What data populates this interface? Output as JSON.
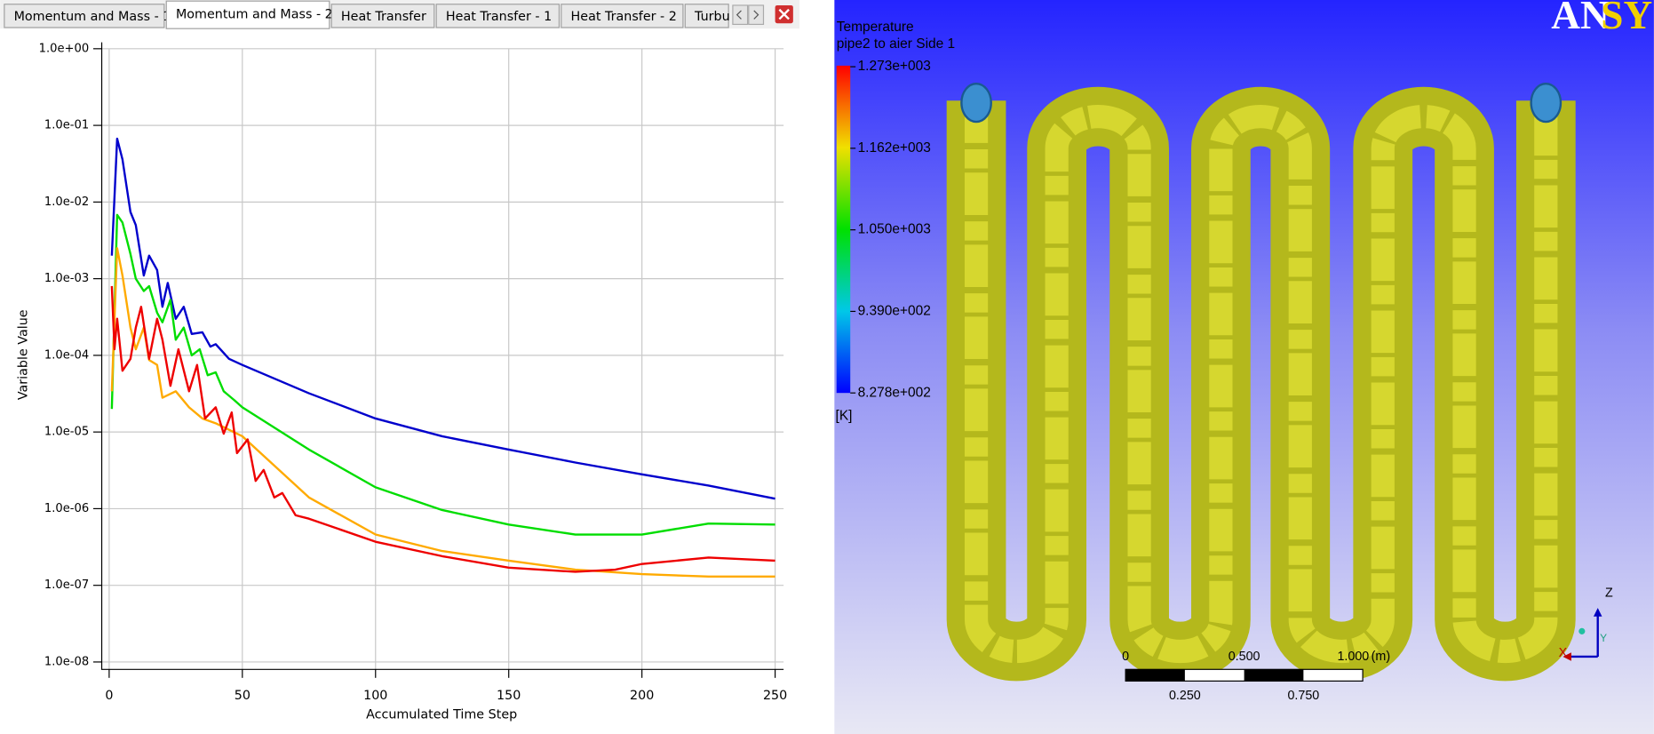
{
  "tabs": [
    "Momentum and Mass - 1",
    "Momentum and Mass - 2",
    "Heat Transfer",
    "Heat Transfer - 1",
    "Heat Transfer - 2",
    "Turbu"
  ],
  "chart_data": {
    "type": "line",
    "x_label": "Accumulated Time Step",
    "y_label": "Variable Value",
    "log_y": true,
    "grid": true,
    "xlim": [
      0,
      250
    ],
    "xticks": [
      0,
      50,
      100,
      150,
      200,
      250
    ],
    "ylim": [
      1e-08,
      1
    ],
    "yticks": [
      {
        "value": 1e-08,
        "label": "1.0e-08"
      },
      {
        "value": 1e-07,
        "label": "1.0e-07"
      },
      {
        "value": 1e-06,
        "label": "1.0e-06"
      },
      {
        "value": 1e-05,
        "label": "1.0e-05"
      },
      {
        "value": 0.0001,
        "label": "1.0e-04"
      },
      {
        "value": 0.001,
        "label": "1.0e-03"
      },
      {
        "value": 0.01,
        "label": "1.0e-02"
      },
      {
        "value": 0.1,
        "label": "1.0e-01"
      },
      {
        "value": 1,
        "label": "1.0e+00"
      }
    ],
    "series": [
      {
        "color": "#0000cc",
        "x": [
          1,
          3,
          5,
          8,
          10,
          13,
          15,
          18,
          20,
          22,
          25,
          28,
          31,
          35,
          38,
          40,
          45,
          50,
          75,
          100,
          125,
          150,
          175,
          200,
          225,
          250
        ],
        "values": [
          0.002,
          0.067,
          0.036,
          0.0074,
          0.005,
          0.0011,
          0.002,
          0.0013,
          0.00043,
          0.00088,
          0.0003,
          0.00043,
          0.00019,
          0.0002,
          0.00013,
          0.00014,
          9e-05,
          7.5e-05,
          3.2e-05,
          1.5e-05,
          8.8e-06,
          5.9e-06,
          4e-06,
          2.8e-06,
          2e-06,
          1.35e-06
        ]
      },
      {
        "color": "#00dd00",
        "x": [
          1,
          3,
          5,
          8,
          10,
          13,
          15,
          18,
          20,
          23,
          25,
          28,
          31,
          34,
          37,
          40,
          43,
          47,
          50,
          75,
          100,
          125,
          150,
          175,
          200,
          225,
          250
        ],
        "values": [
          2e-05,
          0.0068,
          0.0054,
          0.0021,
          0.001,
          0.00069,
          0.0008,
          0.00036,
          0.00027,
          0.00053,
          0.00016,
          0.00023,
          0.0001,
          0.00012,
          5.5e-05,
          6e-05,
          3.4e-05,
          2.6e-05,
          2.1e-05,
          5.9e-06,
          1.9e-06,
          9.6e-07,
          6.2e-07,
          4.6e-07,
          4.6e-07,
          6.4e-07,
          6.2e-07
        ]
      },
      {
        "color": "#ffaa00",
        "x": [
          1,
          3,
          5,
          8,
          10,
          13,
          15,
          18,
          20,
          25,
          30,
          35,
          40,
          50,
          75,
          100,
          125,
          150,
          175,
          200,
          225,
          250
        ],
        "values": [
          3.4e-05,
          0.0025,
          0.0011,
          0.00023,
          0.00012,
          0.00023,
          8.7e-05,
          7.5e-05,
          2.8e-05,
          3.4e-05,
          2.1e-05,
          1.5e-05,
          1.3e-05,
          8.8e-06,
          1.4e-06,
          4.6e-07,
          2.8e-07,
          2.1e-07,
          1.6e-07,
          1.4e-07,
          1.3e-07,
          1.3e-07
        ]
      },
      {
        "color": "#ee0000",
        "x": [
          1,
          2,
          3,
          5,
          8,
          10,
          12,
          15,
          18,
          20,
          23,
          26,
          30,
          33,
          36,
          40,
          43,
          46,
          48,
          52,
          55,
          58,
          62,
          65,
          70,
          75,
          100,
          125,
          150,
          175,
          190,
          200,
          225,
          250
        ],
        "values": [
          0.0008,
          0.00012,
          0.0003,
          6.3e-05,
          9e-05,
          0.00023,
          0.00043,
          9e-05,
          0.0003,
          0.00016,
          4e-05,
          0.00012,
          3.4e-05,
          7.5e-05,
          1.5e-05,
          2.1e-05,
          9.5e-06,
          1.8e-05,
          5.3e-06,
          8e-06,
          2.3e-06,
          3.2e-06,
          1.4e-06,
          1.6e-06,
          8.2e-07,
          7.4e-07,
          3.7e-07,
          2.4e-07,
          1.7e-07,
          1.5e-07,
          1.6e-07,
          1.9e-07,
          2.3e-07,
          2.1e-07
        ]
      }
    ]
  },
  "viewer": {
    "logo": [
      "AN",
      "SYS"
    ],
    "legend": {
      "title": "Temperature",
      "subtitle": "pipe2 to aier Side 1",
      "labels": [
        "1.273e+003",
        "1.162e+003",
        "1.050e+003",
        "9.390e+002",
        "8.278e+002"
      ],
      "unit": "[K]"
    },
    "scale_bar": {
      "top": [
        "0",
        "0.500",
        "1.000",
        "(m)"
      ],
      "bottom": [
        "0.250",
        "0.750"
      ]
    },
    "axes": [
      "Z",
      "Y",
      "X"
    ]
  }
}
